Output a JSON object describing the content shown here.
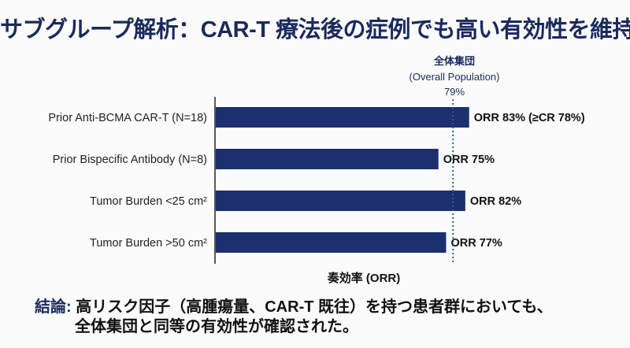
{
  "title": "サブグループ解析：CAR-T 療法後の症例でも高い有効性を維持",
  "chart_data": {
    "type": "bar",
    "orientation": "horizontal",
    "categories": [
      "Prior Anti-BCMA CAR-T (N=18)",
      "Prior Bispecific Antibody (N=8)",
      "Tumor Burden <25 cm²",
      "Tumor Burden >50 cm²"
    ],
    "values": [
      83,
      75,
      82,
      77
    ],
    "data_labels": [
      "ORR 83% (≥CR 78%)",
      "ORR 75%",
      "ORR 82%",
      "ORR 77%"
    ],
    "xlabel": "奏効率 (ORR)",
    "xlim": [
      17,
      100
    ],
    "grid": false,
    "bar_color": "#1c2f6e",
    "reference_line": {
      "value": 79,
      "label_ja": "全体集団",
      "label_en": "(Overall Population)",
      "label_value": "79%",
      "style": "dotted",
      "color": "#2a5c9a"
    }
  },
  "conclusion": {
    "label": "結論:",
    "line1": "高リスク因子（高腫瘍量、CAR-T 既往）を持つ患者群においても、",
    "line2": "全体集団と同等の有効性が確認された。"
  }
}
